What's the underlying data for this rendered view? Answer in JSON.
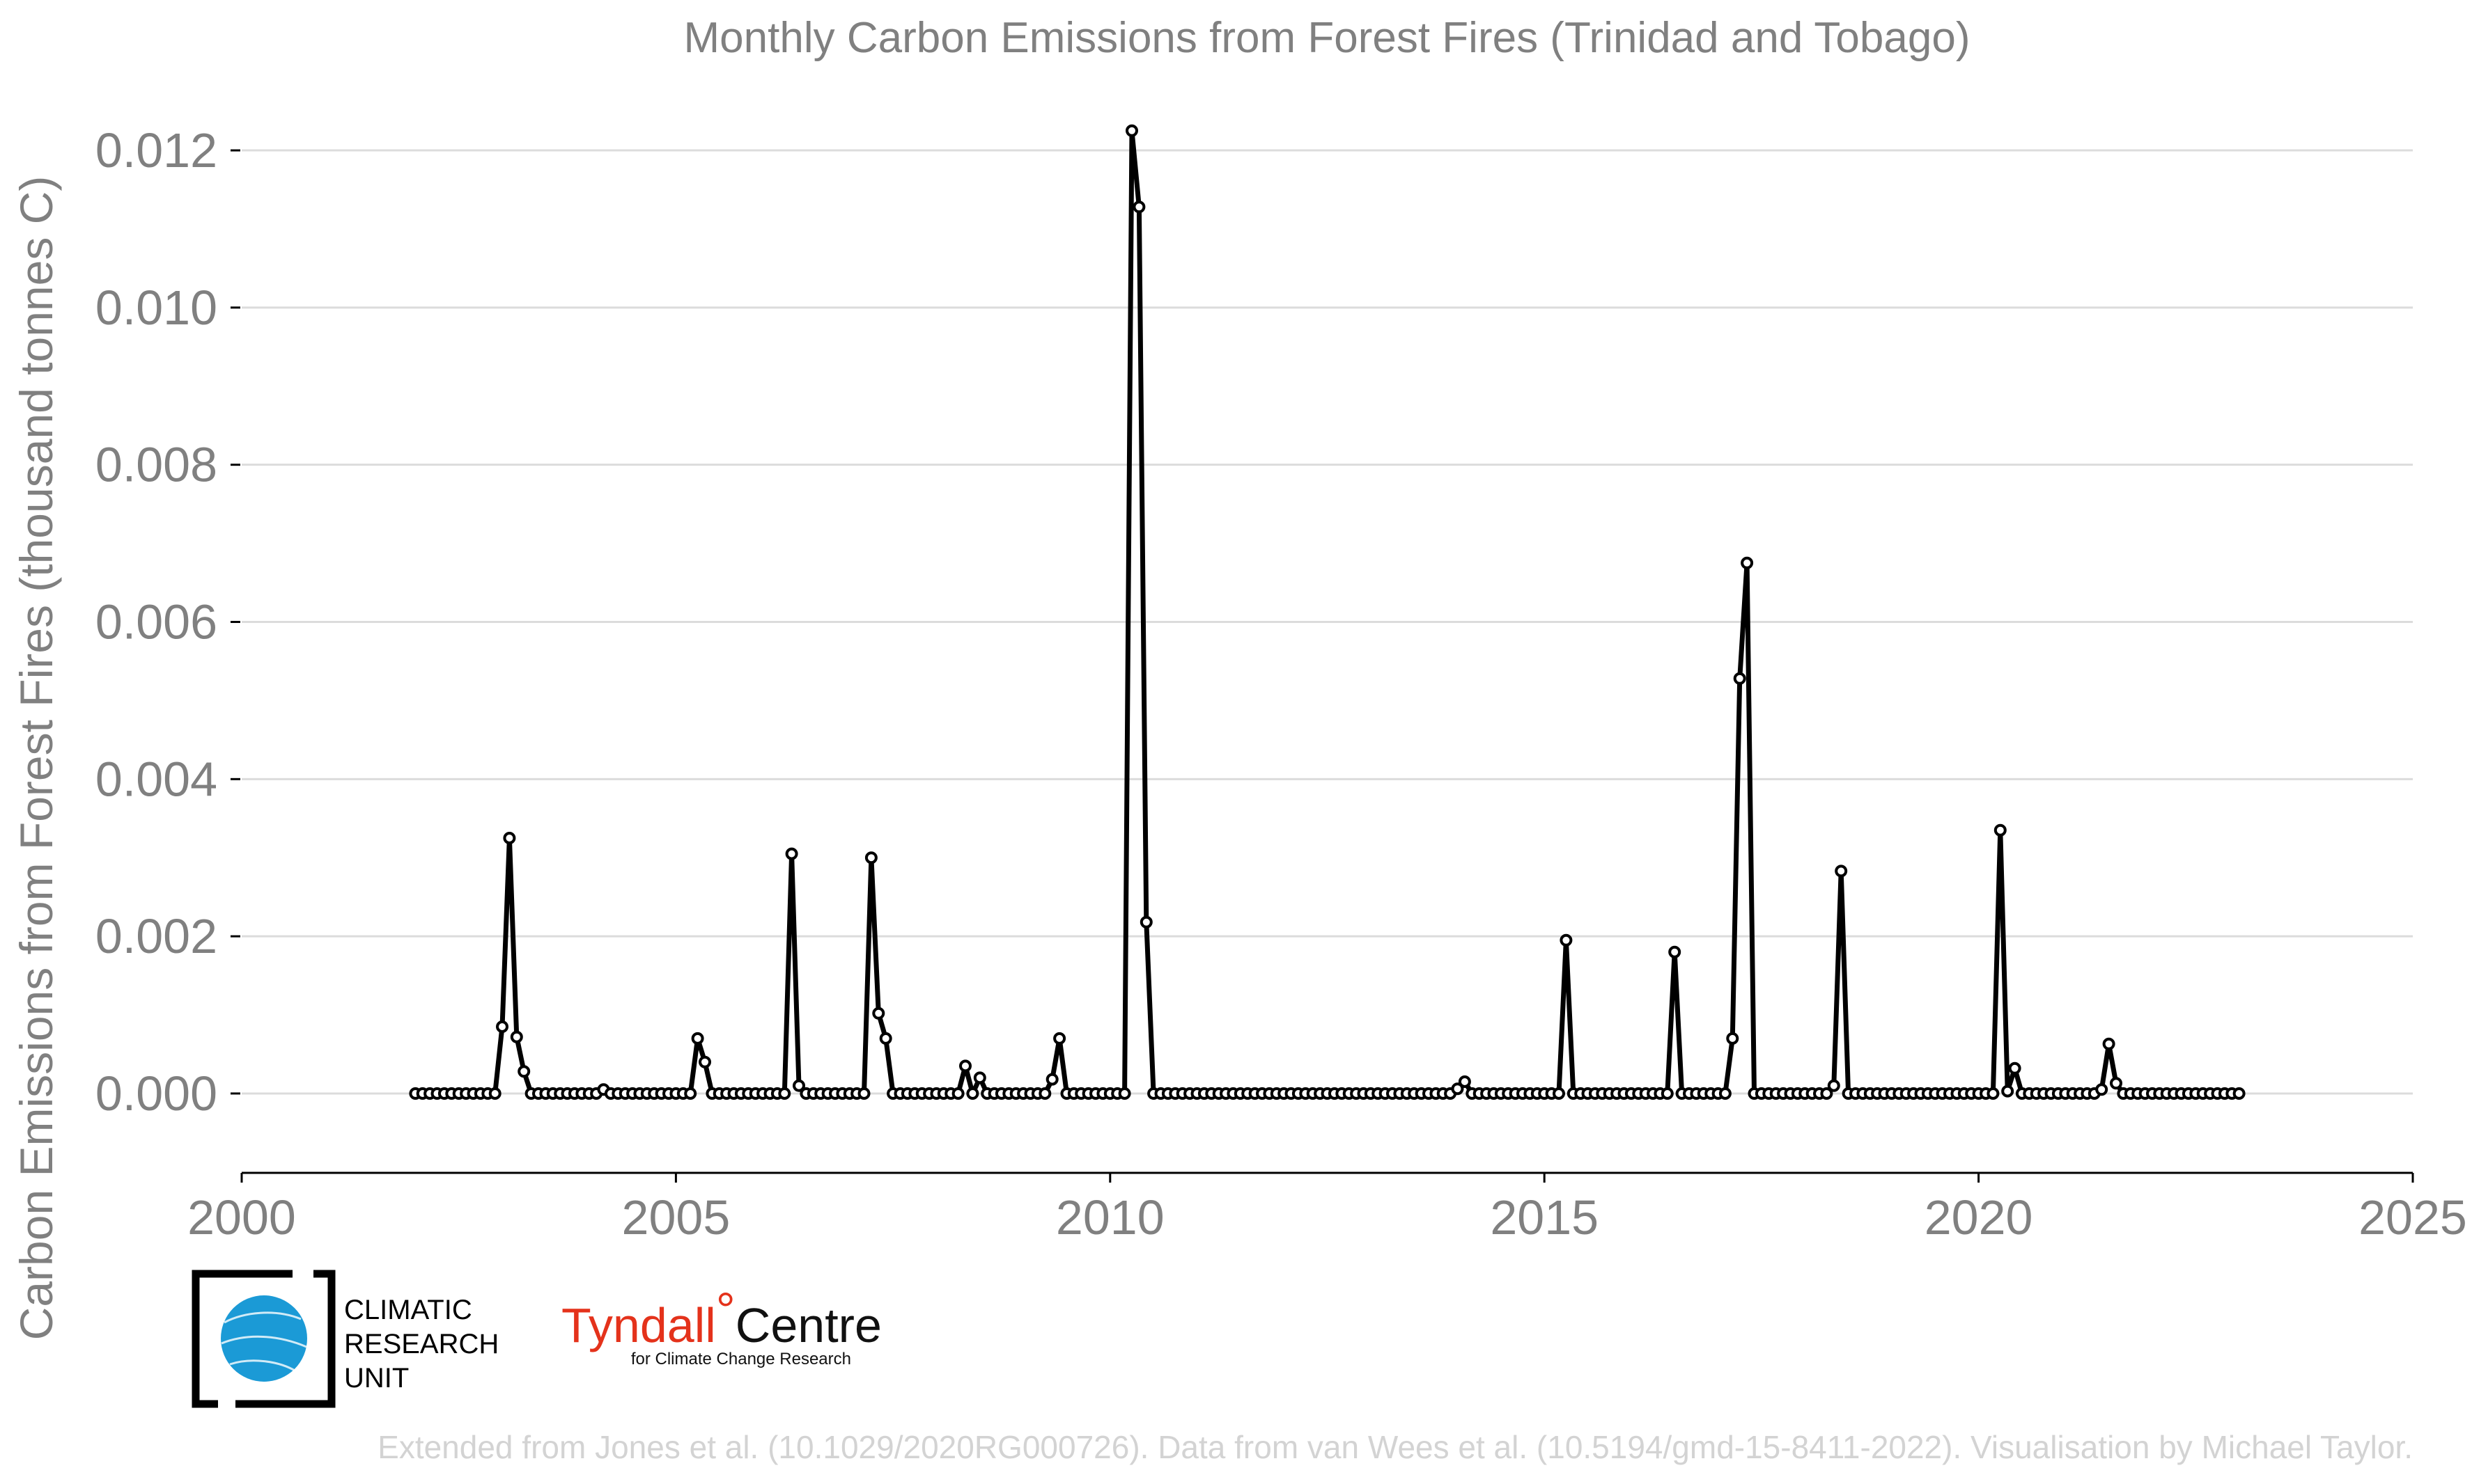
{
  "chart_data": {
    "type": "line",
    "title": "Monthly Carbon Emissions from Forest Fires (Trinidad and Tobago)",
    "ylabel": "Carbon Emissions from Forest Fires (thousand tonnes C)",
    "xlabel": "",
    "xlim": [
      2000,
      2025
    ],
    "ylim": [
      -0.00101,
      0.0127
    ],
    "x_ticks": [
      "2000",
      "2005",
      "2010",
      "2015",
      "2020",
      "2025"
    ],
    "y_ticks": [
      "0.000",
      "0.002",
      "0.004",
      "0.006",
      "0.008",
      "0.010",
      "0.012"
    ],
    "grid": "horizontal",
    "markers": "open circles",
    "start_year": 2002,
    "series": [
      {
        "color": "#000000",
        "values": [
          0,
          0,
          0,
          0,
          0,
          0,
          0,
          0,
          0,
          0,
          0,
          0,
          0.00085,
          0.00325,
          0.00072,
          0.00028,
          0,
          0,
          0,
          0,
          0,
          0,
          0,
          0,
          0,
          0,
          5e-05,
          0,
          0,
          0,
          0,
          0,
          0,
          0,
          0,
          0,
          0,
          0,
          0,
          0.0007,
          0.0004,
          0,
          0,
          0,
          0,
          0,
          0,
          0,
          0,
          0,
          0,
          0,
          0.00305,
          0.0001,
          0,
          0,
          0,
          0,
          0,
          0,
          0,
          0,
          0,
          0.003,
          0.00102,
          0.0007,
          0,
          0,
          0,
          0,
          0,
          0,
          0,
          0,
          0,
          0,
          0.00035,
          0,
          0.0002,
          0,
          0,
          0,
          0,
          0,
          0,
          0,
          0,
          0,
          0.00018,
          0.0007,
          0,
          0,
          0,
          0,
          0,
          0,
          0,
          0,
          0,
          0.01225,
          0.01128,
          0.00218,
          0,
          0,
          0,
          0,
          0,
          0,
          0,
          0,
          0,
          0,
          0,
          0,
          0,
          0,
          0,
          0,
          0,
          0,
          0,
          0,
          0,
          0,
          0,
          0,
          0,
          0,
          0,
          0,
          0,
          0,
          0,
          0,
          0,
          0,
          0,
          0,
          0,
          0,
          0,
          0,
          0,
          0,
          6e-05,
          0.00015,
          0,
          0,
          0,
          0,
          0,
          0,
          0,
          0,
          0,
          0,
          0,
          0,
          0,
          0.00195,
          0,
          0,
          0,
          0,
          0,
          0,
          0,
          0,
          0,
          0,
          0,
          0,
          0,
          0,
          0.0018,
          0,
          0,
          0,
          0,
          0,
          0,
          0,
          0.0007,
          0.00528,
          0.00675,
          0,
          0,
          0,
          0,
          0,
          0,
          0,
          0,
          0,
          0,
          0,
          0.0001,
          0.00283,
          0,
          0,
          0,
          0,
          0,
          0,
          0,
          0,
          0,
          0,
          0,
          0,
          0,
          0,
          0,
          0,
          0,
          0,
          0,
          0,
          0,
          0.00335,
          3e-05,
          0.00032,
          0,
          0,
          0,
          0,
          0,
          0,
          0,
          0,
          0,
          0,
          0,
          5e-05,
          0.00063,
          0.00013,
          0,
          0,
          0,
          0,
          0,
          0,
          0,
          0,
          0,
          0,
          0,
          0,
          0,
          0,
          0,
          0,
          0
        ]
      }
    ]
  },
  "logos": {
    "cru_lines": [
      "CLIMATIC",
      "RESEARCH",
      "UNIT"
    ],
    "tyndall_a": "Tyndall",
    "tyndall_deg": "°",
    "tyndall_b": "Centre",
    "tyndall_sub": "for Climate Change Research"
  },
  "credit": "Extended from Jones et al. (10.1029/2020RG000726). Data from van Wees et al. (10.5194/gmd-15-8411-2022). Visualisation by Michael Taylor."
}
